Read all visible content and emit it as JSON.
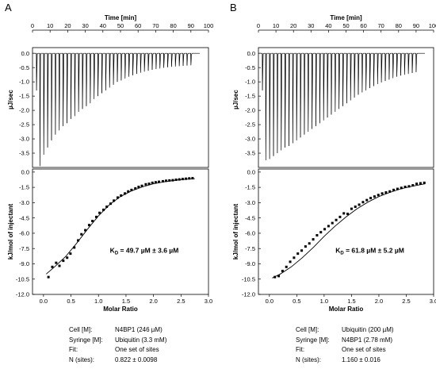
{
  "panels": [
    {
      "letter": "A",
      "raw": {
        "xlabel": "Time [min]",
        "ylabel": "µJ/sec",
        "xticks": [
          0,
          10,
          20,
          30,
          40,
          50,
          60,
          70,
          80,
          90,
          100
        ],
        "yticks": [
          0.0,
          -0.5,
          -1.0,
          -1.5,
          -2.0,
          -2.5,
          -3.0,
          -3.5
        ],
        "xlim": [
          0,
          100
        ],
        "ylim": [
          -4.0,
          0.2
        ],
        "spike_times": [
          2.3,
          4.2,
          6.4,
          8.6,
          10.8,
          13.0,
          15.2,
          17.4,
          19.6,
          21.8,
          24.0,
          26.2,
          28.4,
          30.6,
          32.8,
          35.0,
          37.2,
          39.4,
          41.6,
          43.8,
          46.0,
          48.2,
          50.4,
          52.6,
          54.8,
          57.0,
          59.2,
          61.4,
          63.6,
          65.8,
          68.0,
          70.2,
          72.4,
          74.6,
          76.8,
          79.0,
          81.2,
          83.4,
          85.6,
          87.8,
          90.0
        ],
        "spike_depths": [
          -1.3,
          -3.95,
          -3.55,
          -3.3,
          -3.05,
          -2.85,
          -2.7,
          -2.55,
          -2.45,
          -2.3,
          -2.2,
          -2.05,
          -1.95,
          -1.85,
          -1.75,
          -1.6,
          -1.5,
          -1.4,
          -1.3,
          -1.2,
          -1.1,
          -1.0,
          -0.95,
          -0.88,
          -0.82,
          -0.77,
          -0.72,
          -0.68,
          -0.64,
          -0.61,
          -0.58,
          -0.55,
          -0.53,
          -0.51,
          -0.49,
          -0.47,
          -0.46,
          -0.45,
          -0.44,
          -0.43,
          -0.42
        ]
      },
      "iso": {
        "xlabel": "Molar Ratio",
        "ylabel": "kJ/mol of injectant",
        "xticks": [
          0.0,
          0.5,
          1.0,
          1.5,
          2.0,
          2.5,
          3.0
        ],
        "yticks": [
          0.0,
          -1.5,
          -3.0,
          -4.5,
          -6.0,
          -7.5,
          -9.0,
          -10.5,
          -12.0
        ],
        "xlim": [
          -0.2,
          3.0
        ],
        "ylim": [
          -12.0,
          0.3
        ],
        "points_x": [
          0.09,
          0.16,
          0.23,
          0.29,
          0.36,
          0.43,
          0.49,
          0.56,
          0.63,
          0.69,
          0.76,
          0.83,
          0.89,
          0.96,
          1.02,
          1.09,
          1.15,
          1.22,
          1.28,
          1.35,
          1.41,
          1.48,
          1.54,
          1.6,
          1.67,
          1.73,
          1.79,
          1.86,
          1.92,
          1.98,
          2.04,
          2.1,
          2.17,
          2.23,
          2.29,
          2.35,
          2.41,
          2.47,
          2.53,
          2.59,
          2.65,
          2.71
        ],
        "points_y": [
          -10.3,
          -9.3,
          -8.9,
          -9.2,
          -8.7,
          -8.4,
          -8.0,
          -7.4,
          -6.7,
          -6.1,
          -5.7,
          -5.2,
          -4.8,
          -4.4,
          -4.0,
          -3.7,
          -3.4,
          -3.1,
          -2.8,
          -2.5,
          -2.3,
          -2.1,
          -1.9,
          -1.75,
          -1.6,
          -1.45,
          -1.35,
          -1.2,
          -1.15,
          -1.05,
          -1.0,
          -0.95,
          -0.9,
          -0.85,
          -0.82,
          -0.8,
          -0.75,
          -0.72,
          -0.68,
          -0.65,
          -0.62,
          -0.6
        ],
        "fit_x": [
          0.05,
          0.2,
          0.4,
          0.6,
          0.8,
          1.0,
          1.2,
          1.4,
          1.6,
          1.8,
          2.0,
          2.2,
          2.4,
          2.6,
          2.75
        ],
        "fit_y": [
          -10.0,
          -9.3,
          -8.3,
          -7.0,
          -5.6,
          -4.3,
          -3.2,
          -2.4,
          -1.85,
          -1.45,
          -1.15,
          -0.95,
          -0.8,
          -0.7,
          -0.65
        ],
        "kd_label": "K",
        "kd_sub": "D",
        "kd_value": " = 49.7 µM ± 3.6 µM"
      },
      "params": [
        {
          "label": "Cell [M]:",
          "value": "N4BP1 (246 µM)"
        },
        {
          "label": "Syringe [M]:",
          "value": "Ubiquitin (3.3 mM)"
        },
        {
          "label": "Fit:",
          "value": "One set of sites"
        },
        {
          "label": "N (sites):",
          "value": "0.822 ± 0.0098"
        }
      ]
    },
    {
      "letter": "B",
      "raw": {
        "xlabel": "Time [min]",
        "ylabel": "µJ/sec",
        "xticks": [
          0,
          10,
          20,
          30,
          40,
          50,
          60,
          70,
          80,
          90,
          100
        ],
        "yticks": [
          0.0,
          -0.5,
          -1.0,
          -1.5,
          -2.0,
          -2.5,
          -3.0,
          -3.5
        ],
        "xlim": [
          0,
          100
        ],
        "ylim": [
          -4.0,
          0.2
        ],
        "spike_times": [
          2.3,
          4.2,
          6.4,
          8.6,
          10.8,
          13.0,
          15.2,
          17.4,
          19.6,
          21.8,
          24.0,
          26.2,
          28.4,
          30.6,
          32.8,
          35.0,
          37.2,
          39.4,
          41.6,
          43.8,
          46.0,
          48.2,
          50.4,
          52.6,
          54.8,
          57.0,
          59.2,
          61.4,
          63.6,
          65.8,
          68.0,
          70.2,
          72.4,
          74.6,
          76.8,
          79.0,
          81.2,
          83.4,
          85.6,
          87.8,
          90.0
        ],
        "spike_depths": [
          -1.3,
          -3.75,
          -3.7,
          -3.6,
          -3.5,
          -3.4,
          -3.3,
          -3.25,
          -3.15,
          -3.05,
          -2.95,
          -2.85,
          -2.75,
          -2.65,
          -2.55,
          -2.45,
          -2.35,
          -2.25,
          -2.15,
          -2.05,
          -1.95,
          -1.85,
          -1.75,
          -1.65,
          -1.55,
          -1.45,
          -1.37,
          -1.3,
          -1.22,
          -1.15,
          -1.08,
          -1.02,
          -0.97,
          -0.92,
          -0.87,
          -0.82,
          -0.78,
          -0.75,
          -0.72,
          -0.69,
          -0.66
        ]
      },
      "iso": {
        "xlabel": "Molar Ratio",
        "ylabel": "kJ/mol of injectant",
        "xticks": [
          0.0,
          0.5,
          1.0,
          1.5,
          2.0,
          2.5,
          3.0
        ],
        "yticks": [
          0.0,
          -1.5,
          -3.0,
          -4.5,
          -6.0,
          -7.5,
          -9.0,
          -10.5,
          -12.0
        ],
        "xlim": [
          -0.2,
          3.0
        ],
        "ylim": [
          -12.0,
          0.3
        ],
        "points_x": [
          0.1,
          0.17,
          0.24,
          0.31,
          0.38,
          0.45,
          0.52,
          0.59,
          0.66,
          0.73,
          0.8,
          0.87,
          0.94,
          1.01,
          1.08,
          1.15,
          1.22,
          1.29,
          1.36,
          1.43,
          1.5,
          1.57,
          1.64,
          1.71,
          1.78,
          1.85,
          1.92,
          1.99,
          2.06,
          2.13,
          2.2,
          2.27,
          2.34,
          2.41,
          2.48,
          2.55,
          2.62,
          2.69,
          2.76,
          2.83
        ],
        "points_y": [
          -10.3,
          -10.2,
          -9.7,
          -9.3,
          -8.8,
          -8.4,
          -8.0,
          -7.7,
          -7.3,
          -7.0,
          -6.6,
          -6.2,
          -5.9,
          -5.6,
          -5.3,
          -5.0,
          -4.7,
          -4.4,
          -4.05,
          -4.1,
          -3.6,
          -3.4,
          -3.2,
          -2.95,
          -2.75,
          -2.55,
          -2.4,
          -2.25,
          -2.1,
          -2.0,
          -1.9,
          -1.75,
          -1.65,
          -1.55,
          -1.45,
          -1.4,
          -1.3,
          -1.15,
          -1.1,
          -1.05
        ],
        "fit_x": [
          0.05,
          0.2,
          0.4,
          0.6,
          0.8,
          1.0,
          1.2,
          1.4,
          1.6,
          1.8,
          2.0,
          2.2,
          2.4,
          2.6,
          2.85
        ],
        "fit_y": [
          -10.4,
          -10.0,
          -9.3,
          -8.4,
          -7.4,
          -6.3,
          -5.3,
          -4.4,
          -3.6,
          -2.95,
          -2.4,
          -2.0,
          -1.65,
          -1.4,
          -1.15
        ],
        "kd_label": "K",
        "kd_sub": "D",
        "kd_value": " = 61.8 µM ± 5.2 µM"
      },
      "params": [
        {
          "label": "Cell [M]:",
          "value": "Ubiquitin (200 µM)"
        },
        {
          "label": "Syringe [M]:",
          "value": "N4BP1 (2.78 mM)"
        },
        {
          "label": "Fit:",
          "value": "One set of sites"
        },
        {
          "label": "N (sites):",
          "value": "1.160 ± 0.016"
        }
      ]
    }
  ]
}
